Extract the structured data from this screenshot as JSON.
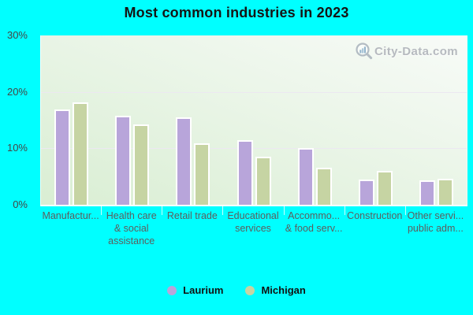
{
  "title": "Most common industries in 2023",
  "watermark": {
    "text": "City-Data.com"
  },
  "colors": {
    "page_background": "#00ffff",
    "plot_gradient_top_right": "#f8fbf8",
    "plot_gradient_bottom_left": "#d9eed3",
    "gridline": "#ece8f1",
    "title_text": "#151515",
    "y_axis_text": "#454545",
    "x_axis_text": "#5d5d5d",
    "legend_text": "#111111",
    "watermark_text": "#b6babf",
    "watermark_icon": "#b3bcc3",
    "bar_outline": "#ffffff",
    "laurium": "#b8a5da",
    "michigan": "#c6d4a3"
  },
  "chart_data": {
    "type": "bar",
    "title": "Most common industries in 2023",
    "categories": [
      "Manufactur...",
      "Health care & social assistance",
      "Retail trade",
      "Educational services",
      "Accommo... & food serv...",
      "Construction",
      "Other servi... public adm..."
    ],
    "category_label_lines": [
      [
        "Manufactur..."
      ],
      [
        "Health care",
        "& social",
        "assistance"
      ],
      [
        "Retail trade"
      ],
      [
        "Educational",
        "services"
      ],
      [
        "Accommo...",
        "& food serv..."
      ],
      [
        "Construction"
      ],
      [
        "Other servi...",
        "public adm..."
      ]
    ],
    "series": [
      {
        "name": "Laurium",
        "color": "#b8a5da",
        "values": [
          16.9,
          15.8,
          15.5,
          11.5,
          10.0,
          4.5,
          4.3
        ]
      },
      {
        "name": "Michigan",
        "color": "#c6d4a3",
        "values": [
          18.1,
          14.3,
          10.9,
          8.5,
          6.6,
          6.0,
          4.6
        ]
      }
    ],
    "xlabel": "",
    "ylabel": "",
    "ylim": [
      0,
      30
    ],
    "ytick_values": [
      0,
      10,
      20,
      30
    ],
    "ytick_labels": [
      "0%",
      "10%",
      "20%",
      "30%"
    ],
    "grid": true,
    "legend_position": "bottom"
  }
}
